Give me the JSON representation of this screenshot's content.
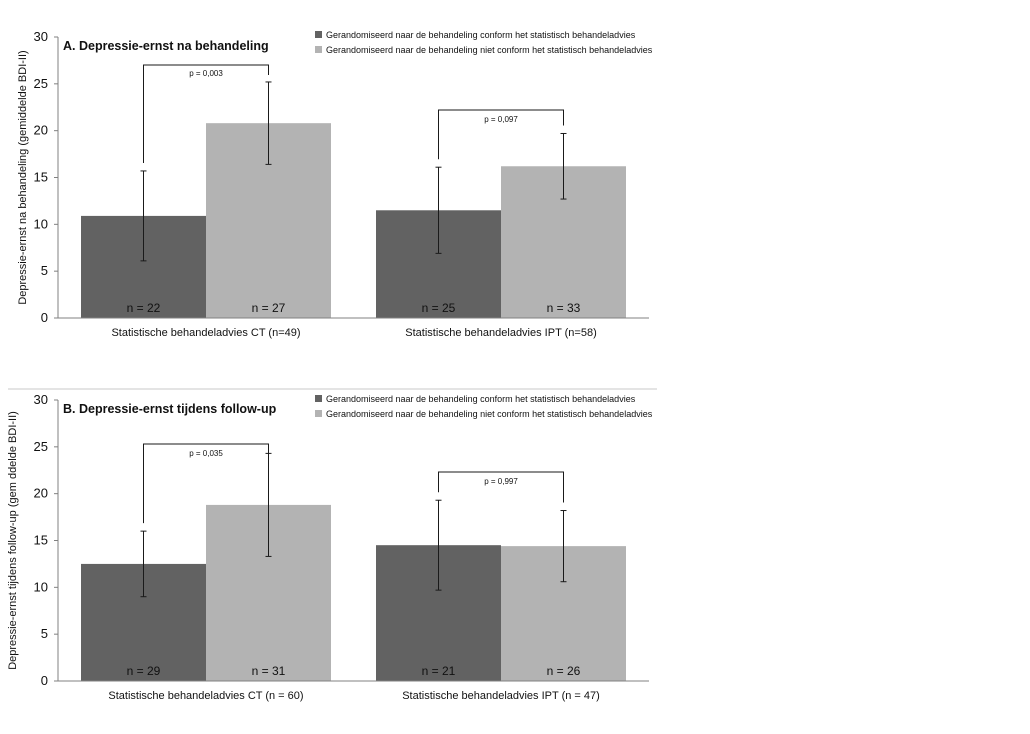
{
  "colors": {
    "conform": "#626262",
    "niet_conform": "#b3b3b3",
    "axis": "#808080",
    "divider": "#c8c8c8",
    "text": "#111111"
  },
  "chart_data": [
    {
      "type": "bar",
      "title": "A. Depressie-ernst na behandeling",
      "ylabel": "Depressie-ernst na behandeling (gemiddelde BDI-II)",
      "xlabel": "",
      "ylim": [
        0,
        30
      ],
      "yticks": [
        0,
        5,
        10,
        15,
        20,
        25,
        30
      ],
      "categories": [
        "Statistische behandeladvies CT (n=49)",
        "Statistische behandeladvies IPT (n=58)"
      ],
      "legend_position": "top-right",
      "series": [
        {
          "name": "Gerandomiseerd naar de behandeling conform het statistisch behandeladvies",
          "color_key": "conform",
          "values": [
            10.9,
            11.5
          ],
          "error": [
            4.8,
            4.6
          ],
          "n_labels": [
            "n = 22",
            "n = 25"
          ]
        },
        {
          "name": "Gerandomiseerd naar de behandeling niet conform het statistisch behandeladvies",
          "color_key": "niet_conform",
          "values": [
            20.8,
            16.2
          ],
          "error": [
            4.4,
            3.5
          ],
          "n_labels": [
            "n = 27",
            "n = 33"
          ]
        }
      ],
      "annotations": [
        "p = 0,003",
        "p = 0,097"
      ]
    },
    {
      "type": "bar",
      "title": "B. Depressie-ernst tijdens follow-up",
      "ylabel": "Depressie-ernst tijdens follow-up (gem ddelde BDI-II)",
      "xlabel": "",
      "ylim": [
        0,
        30
      ],
      "yticks": [
        0,
        5,
        10,
        15,
        20,
        25,
        30
      ],
      "categories": [
        "Statistische behandeladvies CT (n = 60)",
        "Statistische behandeladvies IPT (n = 47)"
      ],
      "legend_position": "top-right",
      "series": [
        {
          "name": "Gerandomiseerd naar de behandeling conform het statistisch behandeladvies",
          "color_key": "conform",
          "values": [
            12.5,
            14.5
          ],
          "error": [
            3.5,
            4.8
          ],
          "n_labels": [
            "n = 29",
            "n = 21"
          ]
        },
        {
          "name": "Gerandomiseerd naar de behandeling niet conform het statistisch behandeladvies",
          "color_key": "niet_conform",
          "values": [
            18.8,
            14.4
          ],
          "error": [
            5.5,
            3.8
          ],
          "n_labels": [
            "n = 31",
            "n = 26"
          ]
        }
      ],
      "annotations": [
        "p = 0,035",
        "p = 0,997"
      ]
    }
  ]
}
